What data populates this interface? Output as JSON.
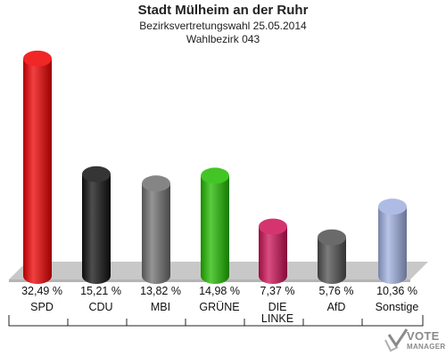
{
  "header": {
    "title": "Stadt Mülheim an der Ruhr",
    "subtitle": "Bezirksvertretungswahl 25.05.2014",
    "district": "Wahlbezirk 043"
  },
  "chart_data": {
    "type": "bar",
    "categories": [
      "SPD",
      "CDU",
      "MBI",
      "GRÜNE",
      "DIE LINKE",
      "AfD",
      "Sonstige"
    ],
    "category_lines": [
      [
        "SPD"
      ],
      [
        "CDU"
      ],
      [
        "MBI"
      ],
      [
        "GRÜNE"
      ],
      [
        "DIE",
        "LINKE"
      ],
      [
        "AfD"
      ],
      [
        "Sonstige"
      ]
    ],
    "values": [
      32.49,
      15.21,
      13.82,
      14.98,
      7.37,
      5.76,
      10.36
    ],
    "value_labels": [
      "32,49 %",
      "15,21 %",
      "13,82 %",
      "14,98 %",
      "7,37 %",
      "5,76 %",
      "10,36 %"
    ],
    "colors": [
      "#ee0000",
      "#111111",
      "#707070",
      "#22bb00",
      "#cc1155",
      "#505050",
      "#a0b0e0"
    ],
    "ylim": [
      0,
      33
    ],
    "grid": false,
    "legend": "none"
  },
  "logo": {
    "line1": "VOTE",
    "line2": "MANAGER",
    "color": "#8a8a8a"
  }
}
